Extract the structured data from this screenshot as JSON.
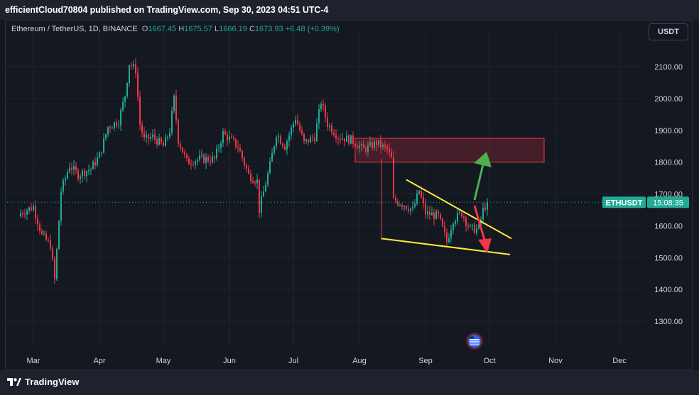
{
  "header": {
    "publisher": "efficientCloud70804 published on TradingView.com, Sep 30, 2023 04:51 UTC-4"
  },
  "legend": {
    "symbol": "Ethereum / TetherUS, 1D, BINANCE",
    "o_label": "O",
    "o_value": "1667.45",
    "h_label": "H",
    "h_value": "1675.57",
    "l_label": "L",
    "l_value": "1666.19",
    "c_label": "C",
    "c_value": "1673.93",
    "change": "+6.48 (+0.39%)"
  },
  "currency_button": "USDT",
  "price_tag": {
    "symbol": "ETHUSDT",
    "countdown": "15:08:35"
  },
  "footer": {
    "brand": "TradingView"
  },
  "colors": {
    "up": "#22ab94",
    "down": "#f23645",
    "zone": "#f23645",
    "trendline": "#ffeb3b",
    "arrow_up": "#4caf50",
    "arrow_down": "#f23645"
  },
  "chart_data": {
    "type": "candlestick",
    "symbol": "ETHUSDT",
    "y_ticks": [
      "2100.00",
      "2000.00",
      "1900.00",
      "1800.00",
      "1700.00",
      "1600.00",
      "1500.00",
      "1400.00",
      "1300.00"
    ],
    "x_ticks": [
      "Mar",
      "Apr",
      "May",
      "Jun",
      "Jul",
      "Aug",
      "Sep",
      "Oct",
      "Nov",
      "Dec"
    ],
    "ylim": [
      1235,
      2165
    ],
    "last_price": 1673.93,
    "series_close": [
      {
        "date": "2023-02-23",
        "close": 1640
      },
      {
        "date": "2023-03-01",
        "close": 1660
      },
      {
        "date": "2023-03-05",
        "close": 1570
      },
      {
        "date": "2023-03-09",
        "close": 1540
      },
      {
        "date": "2023-03-11",
        "close": 1430
      },
      {
        "date": "2023-03-14",
        "close": 1710
      },
      {
        "date": "2023-03-18",
        "close": 1790
      },
      {
        "date": "2023-03-22",
        "close": 1760
      },
      {
        "date": "2023-03-28",
        "close": 1780
      },
      {
        "date": "2023-04-01",
        "close": 1820
      },
      {
        "date": "2023-04-05",
        "close": 1910
      },
      {
        "date": "2023-04-10",
        "close": 1930
      },
      {
        "date": "2023-04-13",
        "close": 2010
      },
      {
        "date": "2023-04-15",
        "close": 2110
      },
      {
        "date": "2023-04-18",
        "close": 2090
      },
      {
        "date": "2023-04-20",
        "close": 1920
      },
      {
        "date": "2023-04-22",
        "close": 1870
      },
      {
        "date": "2023-04-26",
        "close": 1880
      },
      {
        "date": "2023-05-01",
        "close": 1850
      },
      {
        "date": "2023-05-04",
        "close": 1900
      },
      {
        "date": "2023-05-06",
        "close": 2000
      },
      {
        "date": "2023-05-08",
        "close": 1870
      },
      {
        "date": "2023-05-12",
        "close": 1800
      },
      {
        "date": "2023-05-18",
        "close": 1810
      },
      {
        "date": "2023-05-25",
        "close": 1810
      },
      {
        "date": "2023-05-29",
        "close": 1890
      },
      {
        "date": "2023-06-05",
        "close": 1850
      },
      {
        "date": "2023-06-10",
        "close": 1760
      },
      {
        "date": "2023-06-14",
        "close": 1740
      },
      {
        "date": "2023-06-15",
        "close": 1650
      },
      {
        "date": "2023-06-20",
        "close": 1790
      },
      {
        "date": "2023-06-23",
        "close": 1890
      },
      {
        "date": "2023-06-27",
        "close": 1850
      },
      {
        "date": "2023-07-02",
        "close": 1940
      },
      {
        "date": "2023-07-06",
        "close": 1860
      },
      {
        "date": "2023-07-11",
        "close": 1880
      },
      {
        "date": "2023-07-14",
        "close": 1990
      },
      {
        "date": "2023-07-17",
        "close": 1920
      },
      {
        "date": "2023-07-22",
        "close": 1880
      },
      {
        "date": "2023-07-28",
        "close": 1870
      },
      {
        "date": "2023-08-03",
        "close": 1840
      },
      {
        "date": "2023-08-09",
        "close": 1860
      },
      {
        "date": "2023-08-14",
        "close": 1840
      },
      {
        "date": "2023-08-16",
        "close": 1810
      },
      {
        "date": "2023-08-17",
        "close": 1680
      },
      {
        "date": "2023-08-21",
        "close": 1670
      },
      {
        "date": "2023-08-26",
        "close": 1650
      },
      {
        "date": "2023-08-29",
        "close": 1710
      },
      {
        "date": "2023-09-01",
        "close": 1640
      },
      {
        "date": "2023-09-07",
        "close": 1630
      },
      {
        "date": "2023-09-11",
        "close": 1550
      },
      {
        "date": "2023-09-14",
        "close": 1620
      },
      {
        "date": "2023-09-18",
        "close": 1640
      },
      {
        "date": "2023-09-22",
        "close": 1590
      },
      {
        "date": "2023-09-26",
        "close": 1590
      },
      {
        "date": "2023-09-28",
        "close": 1650
      },
      {
        "date": "2023-09-30",
        "close": 1674
      }
    ],
    "annotations": {
      "resistance_zone_price": [
        1800,
        1875
      ],
      "wedge_upper_line_price": [
        1745,
        1560
      ],
      "wedge_lower_line_price": [
        1560,
        1510
      ],
      "arrows": [
        "up (green)",
        "down (red)"
      ]
    }
  }
}
